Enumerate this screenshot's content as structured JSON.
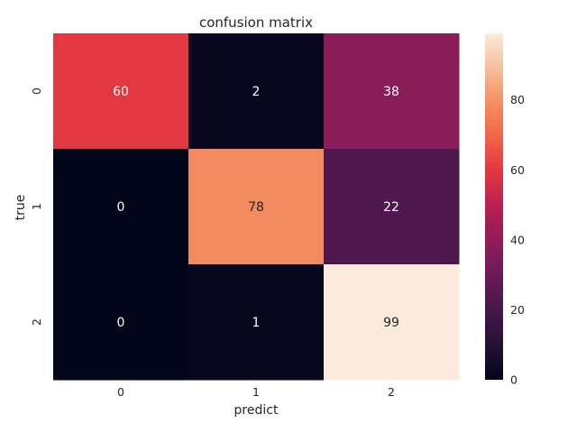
{
  "chart_data": {
    "type": "heatmap",
    "title": "confusion matrix",
    "xlabel": "predict",
    "ylabel": "true",
    "x_categories": [
      "0",
      "1",
      "2"
    ],
    "y_categories": [
      "0",
      "1",
      "2"
    ],
    "values": [
      [
        60,
        2,
        38
      ],
      [
        0,
        78,
        22
      ],
      [
        0,
        1,
        99
      ]
    ],
    "annotations": true,
    "colormap": "rocket",
    "colorbar": {
      "range": [
        0,
        99
      ],
      "ticks": [
        0,
        20,
        40,
        60,
        80
      ]
    },
    "grid": false
  }
}
